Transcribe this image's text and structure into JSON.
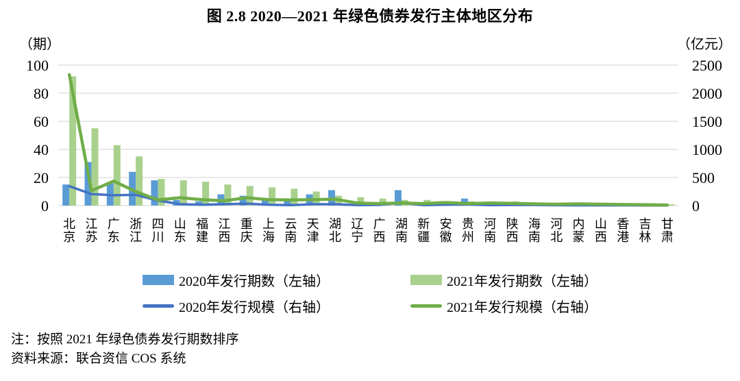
{
  "figure": {
    "title": "图 2.8  2020—2021 年绿色债券发行主体地区分布",
    "note": "注：按照 2021 年绿色债券发行期数排序",
    "source": "资料来源：联合资信 COS 系统"
  },
  "colors": {
    "bar_2020": "#5B9BD5",
    "bar_2021": "#A9D18E",
    "line_2020": "#4472C4",
    "line_2021": "#70AD47",
    "gridline": "#D9D9D9"
  },
  "chart_data": {
    "type": "bar",
    "combo": "bar+line",
    "title": "图 2.8  2020—2021 年绿色债券发行主体地区分布",
    "grid": true,
    "legend_position": "bottom",
    "categories": [
      "北京",
      "江苏",
      "广东",
      "浙江",
      "四川",
      "山东",
      "福建",
      "江西",
      "重庆",
      "上海",
      "云南",
      "天津",
      "湖北",
      "辽宁",
      "广西",
      "湖南",
      "新疆",
      "安徽",
      "贵州",
      "河南",
      "陕西",
      "海南",
      "河北",
      "内蒙",
      "山西",
      "香港",
      "吉林",
      "甘肃"
    ],
    "left_axis": {
      "label": "（期）",
      "min": 0,
      "max": 100,
      "ticks": [
        0,
        20,
        40,
        60,
        80,
        100
      ]
    },
    "right_axis": {
      "label": "（亿元）",
      "min": 0,
      "max": 2500,
      "ticks": [
        0,
        500,
        1000,
        1500,
        2000,
        2500
      ]
    },
    "series": [
      {
        "key": "issues-2020",
        "name": "2020年发行期数（左轴）",
        "type": "bar",
        "axis": "left",
        "color": "#5B9BD5",
        "values": [
          15,
          31,
          16,
          24,
          18,
          4,
          3,
          8,
          7,
          4,
          4,
          8,
          11,
          1,
          2,
          11,
          1,
          2,
          5,
          1,
          2,
          2,
          1,
          1,
          1,
          0,
          1,
          0
        ]
      },
      {
        "key": "issues-2021",
        "name": "2021年发行期数（左轴）",
        "type": "bar",
        "axis": "left",
        "color": "#A9D18E",
        "values": [
          92,
          55,
          43,
          35,
          19,
          18,
          17,
          15,
          14,
          13,
          12,
          10,
          7,
          6,
          5,
          4,
          4,
          3,
          3,
          3,
          3,
          2,
          2,
          2,
          2,
          1,
          1,
          1
        ]
      },
      {
        "key": "scale-2020",
        "name": "2020年发行规模（右轴）",
        "type": "line",
        "axis": "right",
        "color": "#4472C4",
        "stroke_width": 3.5,
        "values": [
          345,
          205,
          185,
          190,
          90,
          25,
          15,
          25,
          35,
          15,
          8,
          25,
          25,
          8,
          12,
          45,
          8,
          15,
          20,
          8,
          10,
          10,
          6,
          5,
          5,
          4,
          3,
          2
        ]
      },
      {
        "key": "scale-2021",
        "name": "2021年发行规模（右轴）",
        "type": "line",
        "axis": "right",
        "color": "#70AD47",
        "stroke_width": 4.5,
        "values": [
          2330,
          265,
          435,
          250,
          100,
          140,
          105,
          85,
          140,
          105,
          100,
          105,
          115,
          45,
          35,
          45,
          35,
          55,
          35,
          45,
          40,
          30,
          25,
          30,
          25,
          20,
          15,
          10
        ]
      }
    ]
  }
}
